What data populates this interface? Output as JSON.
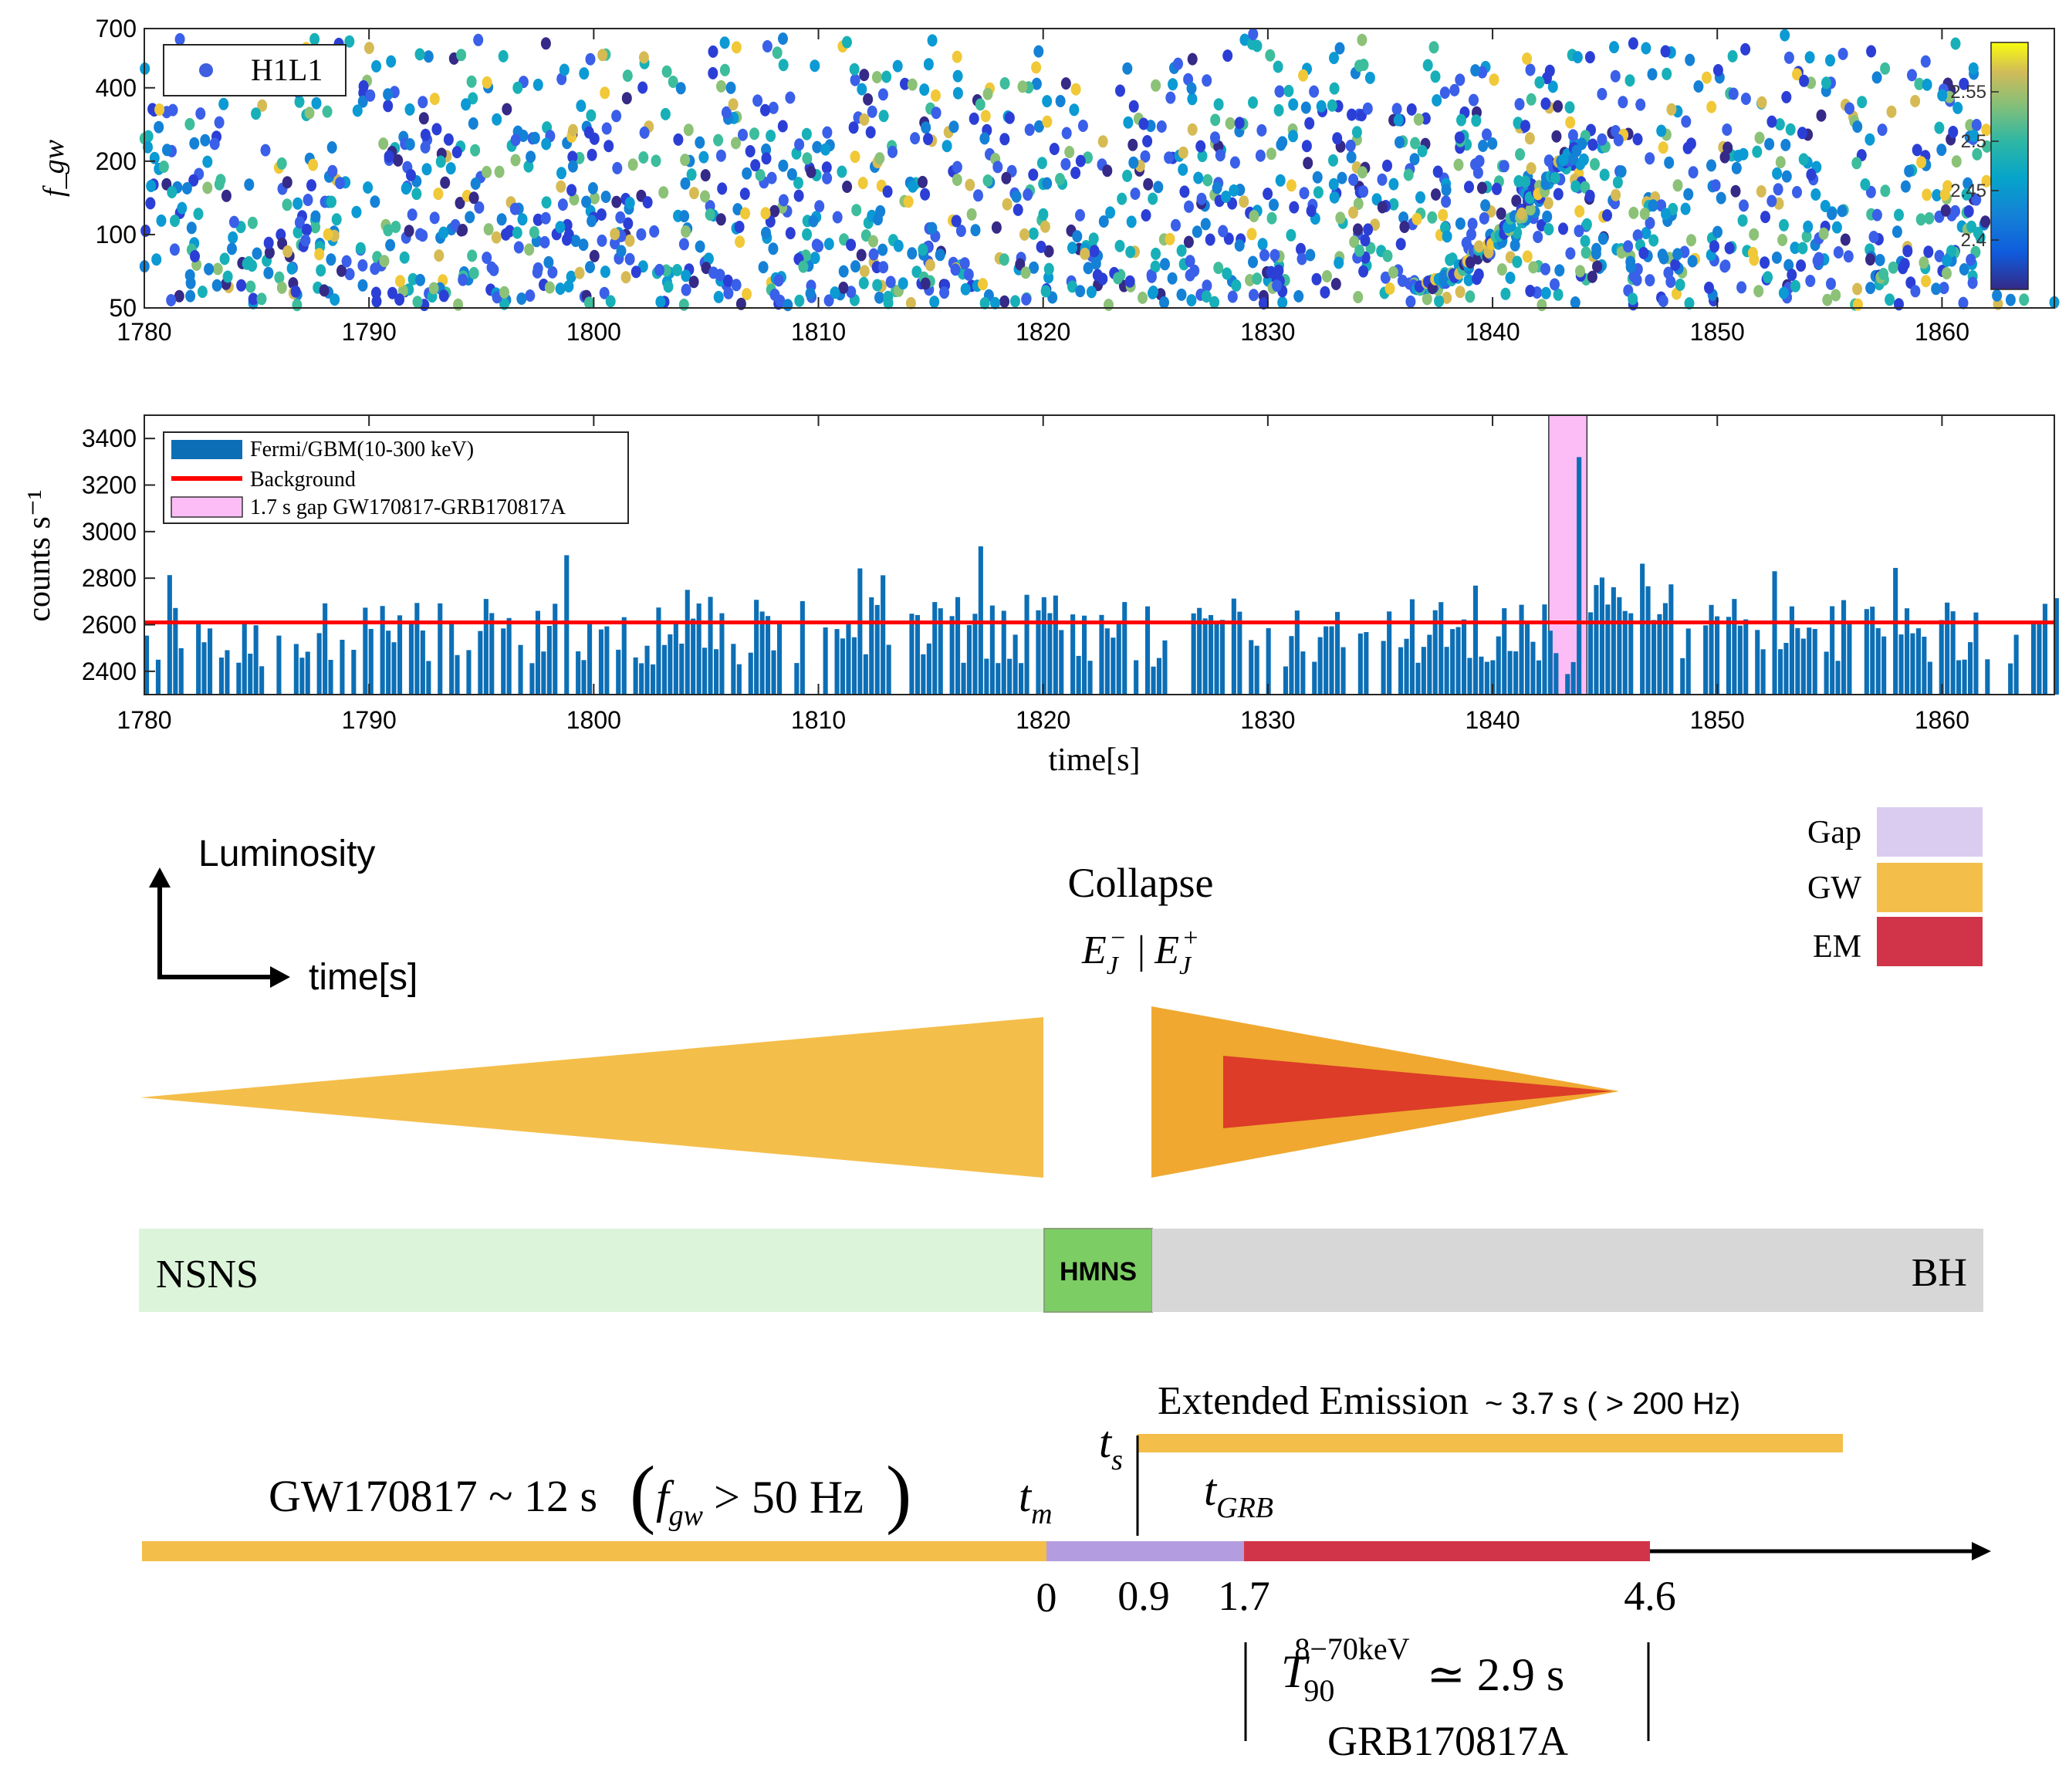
{
  "chart_data": [
    {
      "type": "scatter",
      "title": "",
      "xlabel": "",
      "ylabel": "f_gw",
      "xlim": [
        1780,
        1865
      ],
      "ylim": [
        50,
        700
      ],
      "yscale": "log",
      "x_ticks": [
        "1780",
        "1790",
        "1800",
        "1810",
        "1820",
        "1830",
        "1840",
        "1850",
        "1860"
      ],
      "y_ticks": [
        "700",
        "400",
        "200",
        "100",
        "50"
      ],
      "legend": [
        "H1L1"
      ],
      "colorbar": {
        "ticks": [
          "2.55",
          "2.5",
          "2.45",
          "2.4"
        ],
        "range": [
          2.35,
          2.6
        ]
      },
      "point_count": 1700,
      "feature_track": {
        "description": "chirp",
        "x_range": [
          1836.5,
          1843.5
        ],
        "y_range": [
          60,
          220
        ]
      }
    },
    {
      "type": "bar",
      "title": "",
      "xlabel": "time[s]",
      "ylabel": "counts s⁻¹",
      "xlim": [
        1780,
        1865
      ],
      "ylim": [
        2300,
        3500
      ],
      "x_ticks": [
        "1780",
        "1790",
        "1800",
        "1810",
        "1820",
        "1830",
        "1840",
        "1850",
        "1860"
      ],
      "y_ticks": [
        "3400",
        "3200",
        "3000",
        "2800",
        "2600",
        "2400"
      ],
      "bin_width": 0.256,
      "background": 2610,
      "gap_interval": [
        1842.5,
        1844.2
      ],
      "peak": {
        "x": 1844.0,
        "value": 3370
      },
      "legend": [
        "Fermi/GBM(10-300 keV)",
        "Background",
        "1.7 s gap GW170817-GRB170817A"
      ]
    }
  ],
  "schematic": {
    "luminosity_label": "Luminosity",
    "time_label": "time[s]",
    "collapse_label": "Collapse",
    "energy_left": "E",
    "energy_left_sub": "J",
    "energy_left_sup": "−",
    "energy_sep": "|",
    "energy_right": "E",
    "energy_right_sub": "J",
    "energy_right_sup": "+",
    "legend": [
      {
        "label": "Gap",
        "color": "#d9ccf0"
      },
      {
        "label": "GW",
        "color": "#f4be4a"
      },
      {
        "label": "EM",
        "color": "#d13448"
      }
    ],
    "phases": {
      "nsns": "NSNS",
      "hmns": "HMNS",
      "bh": "BH"
    },
    "extended_emission": "Extended Emission",
    "extended_emission_detail": "~ 3.7 s ( > 200 Hz)",
    "ts_label": "t",
    "ts_sub": "s",
    "tm_label": "t",
    "tm_sub": "m",
    "tgrb_label": "t",
    "tgrb_sub": "GRB",
    "gw_prefix": "GW170817 ~ 12 s",
    "gw_f": "f",
    "gw_f_sub": "gw",
    "gw_cond": "> 50 Hz",
    "ticks": [
      "0",
      "0.9",
      "1.7",
      "4.6"
    ],
    "t90_label": "T",
    "t90_sub": "90",
    "t90_sup": "8−70keV",
    "t90_value": "≃ 2.9 s",
    "grb_name": "GRB170817A"
  },
  "colors": {
    "gw": "#f4be4a",
    "gw_dark": "#f0a830",
    "em": "#d13448",
    "em_triangle": "#dc3c28",
    "gap": "#b39de0",
    "nsns": "#dcf5da",
    "hmns": "#7ccd64",
    "bh": "#d7d7d7",
    "bar": "#0c6fb6",
    "background_line": "#ff0000",
    "gap_fill": "#fcbdf6"
  }
}
